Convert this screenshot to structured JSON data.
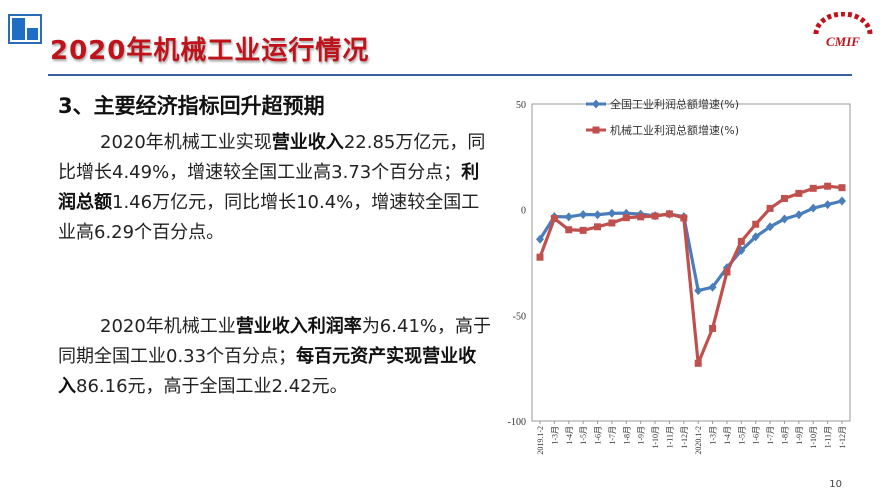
{
  "header": {
    "title": "2020年机械工业运行情况",
    "logo_text": "CMIF"
  },
  "content": {
    "heading": "3、主要经济指标回升超预期",
    "para1": [
      {
        "t": "2020年机械工业实现",
        "b": false
      },
      {
        "t": "营业收入",
        "b": true
      },
      {
        "t": "22.85万亿元，同比增长4.49%，增速较全国工业高3.73个百分点；",
        "b": false
      },
      {
        "t": "利润总额",
        "b": true
      },
      {
        "t": "1.46万亿元，同比增长10.4%，增速较全国工业高6.29个百分点。",
        "b": false
      }
    ],
    "para2": [
      {
        "t": "2020年机械工业",
        "b": false
      },
      {
        "t": "营业收入利润率",
        "b": true
      },
      {
        "t": "为6.41%，高于同期全国工业0.33个百分点；",
        "b": false
      },
      {
        "t": "每百元资产实现营业收入",
        "b": true
      },
      {
        "t": "86.16元，高于全国工业2.42元。",
        "b": false
      }
    ]
  },
  "footer": {
    "page_number": "10"
  },
  "chart_data": {
    "type": "line",
    "title": "",
    "xlabel": "",
    "ylabel": "",
    "ylim": [
      -100,
      50
    ],
    "yticks": [
      50,
      0,
      -50,
      -100
    ],
    "grid": false,
    "legend_position": "top",
    "categories": [
      "2019.1-2",
      "1-3月",
      "1-4月",
      "1-5月",
      "1-6月",
      "1-7月",
      "1-8月",
      "1-9月",
      "1-10月",
      "1-11月",
      "1-12月",
      "2020.1-2",
      "1-3月",
      "1-4月",
      "1-5月",
      "1-6月",
      "1-7月",
      "1-8月",
      "1-9月",
      "1-10月",
      "1-11月",
      "1-12月"
    ],
    "series": [
      {
        "name": "全国工业利润总额增速(%)",
        "color": "#4a7ebb",
        "marker": "diamond",
        "values": [
          -14.0,
          -3.3,
          -3.4,
          -2.3,
          -2.4,
          -1.7,
          -1.7,
          -2.1,
          -2.9,
          -2.1,
          -3.3,
          -38.3,
          -36.7,
          -27.4,
          -19.3,
          -12.8,
          -8.1,
          -4.4,
          -2.4,
          0.7,
          2.4,
          4.1
        ]
      },
      {
        "name": "机械工业利润总额增速(%)",
        "color": "#c0504d",
        "marker": "square",
        "values": [
          -22.5,
          -4.2,
          -9.5,
          -9.8,
          -8.1,
          -6.3,
          -3.8,
          -3.4,
          -3.0,
          -2.0,
          -3.9,
          -72.7,
          -56.2,
          -29.5,
          -15.0,
          -6.9,
          0.6,
          5.3,
          7.7,
          10.1,
          11.1,
          10.4
        ]
      }
    ]
  }
}
